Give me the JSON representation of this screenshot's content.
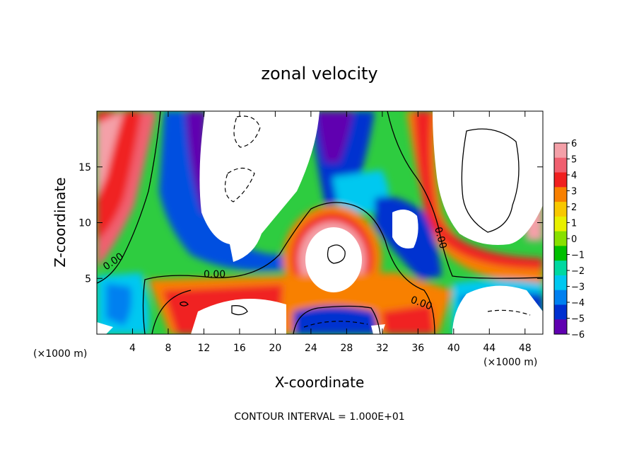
{
  "chart_data": {
    "type": "heatmap",
    "title": "zonal velocity",
    "xlabel": "X-coordinate",
    "ylabel": "Z-coordinate",
    "x_unit_left": "(×1000 m)",
    "x_unit_right": "(×1000 m)",
    "footer": "CONTOUR INTERVAL = 1.000E+01",
    "xlim": [
      0,
      50
    ],
    "ylim": [
      0,
      20
    ],
    "x_ticks": [
      4,
      8,
      12,
      16,
      20,
      24,
      28,
      32,
      36,
      40,
      44,
      48
    ],
    "y_ticks": [
      5,
      10,
      15
    ],
    "colorbar": {
      "min": -6,
      "max": 6,
      "levels": [
        "6",
        "5",
        "4",
        "3",
        "2",
        "1",
        "0",
        "−1",
        "−2",
        "−3",
        "−4",
        "−5",
        "−6"
      ],
      "colors": [
        "#f4a0a8",
        "#f06070",
        "#f02020",
        "#f88000",
        "#f8c800",
        "#e8f000",
        "#88e000",
        "#00c000",
        "#00d8a0",
        "#00c8f0",
        "#0080f0",
        "#0030d0",
        "#6000b0"
      ]
    },
    "contour_labels": [
      "0.00",
      "0.00",
      "0.00",
      "0.00"
    ],
    "grid": false,
    "legend": "right colorbar"
  }
}
